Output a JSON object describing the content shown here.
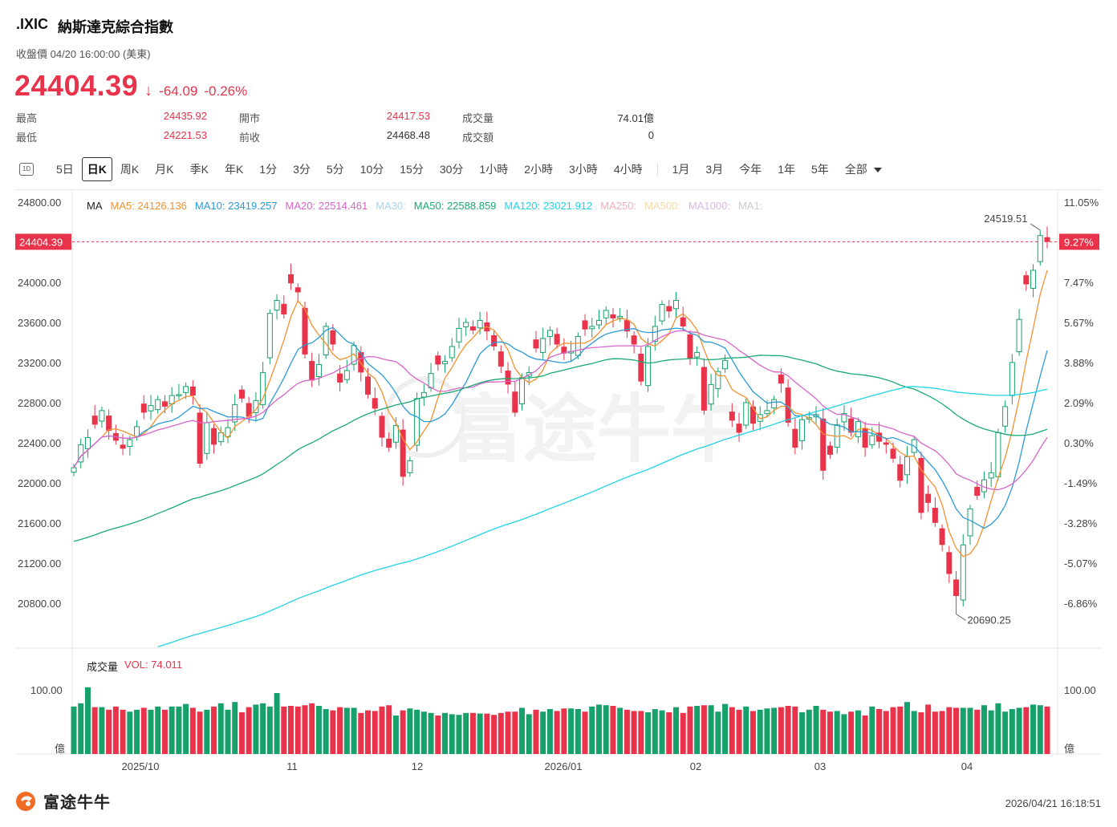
{
  "header": {
    "symbol": ".IXIC",
    "name": "納斯達克綜合指數",
    "status": "收盤價 04/20 16:00:00 (美東)",
    "price": "24404.39",
    "change": "-64.09",
    "change_pct": "-0.26%"
  },
  "stats": [
    {
      "label": "最高",
      "value": "24435.92",
      "color": "red"
    },
    {
      "label": "最低",
      "value": "24221.53",
      "color": "red"
    },
    {
      "label": "開市",
      "value": "24417.53",
      "color": "red"
    },
    {
      "label": "前收",
      "value": "24468.48",
      "color": "dark"
    },
    {
      "label": "成交量",
      "value": "74.01億",
      "color": "dark"
    },
    {
      "label": "成交額",
      "value": "0",
      "color": "dark"
    }
  ],
  "tabs": {
    "icon_label": "1D",
    "items": [
      "5日",
      "日K",
      "周K",
      "月K",
      "季K",
      "年K",
      "1分",
      "3分",
      "5分",
      "10分",
      "15分",
      "30分",
      "1小時",
      "2小時",
      "3小時",
      "4小時",
      "1月",
      "3月",
      "今年",
      "1年",
      "5年",
      "全部"
    ],
    "active": "日K"
  },
  "ma_legend": {
    "title": "MA",
    "items": [
      {
        "text": "MA5: 24126.136",
        "color": "#f29130"
      },
      {
        "text": "MA10: 23419.257",
        "color": "#2b9bd6"
      },
      {
        "text": "MA20: 22514.461",
        "color": "#d964c9"
      },
      {
        "text": "MA30:",
        "color": "#a8d5f0"
      },
      {
        "text": "MA50: 22588.859",
        "color": "#1aaa72"
      },
      {
        "text": "MA120: 23021.912",
        "color": "#22d3e6"
      },
      {
        "text": "MA250:",
        "color": "#f4b0b6"
      },
      {
        "text": "MA500:",
        "color": "#f6d9a6"
      },
      {
        "text": "MA1000:",
        "color": "#d9b8ea"
      },
      {
        "text": "MA1:",
        "color": "#cccccc"
      }
    ]
  },
  "volume_legend": {
    "title": "成交量",
    "value": "VOL: 74.011"
  },
  "footer": {
    "logo_text": "富途牛牛",
    "timestamp": "2026/04/21 16:18:51"
  },
  "colors": {
    "up": "#e8334a",
    "down": "#16a06a",
    "ma5": "#f29130",
    "ma10": "#2b9bd6",
    "ma20": "#d964c9",
    "ma50": "#1aaa72",
    "ma120": "#22d3e6"
  },
  "chart_data": {
    "type": "candlestick",
    "price_axis": {
      "left_ticks": [
        "24800.00",
        "24000.00",
        "23600.00",
        "23200.00",
        "22800.00",
        "22400.00",
        "22000.00",
        "21600.00",
        "21200.00",
        "20800.00"
      ],
      "right_ticks": [
        "11.05%",
        "7.47%",
        "5.67%",
        "3.88%",
        "2.09%",
        "0.30%",
        "-1.49%",
        "-3.28%",
        "-5.07%",
        "-6.86%"
      ],
      "current_price_label": "24404.39",
      "current_pct_label": "9.27%",
      "range": [
        20350,
        24800
      ]
    },
    "volume_axis": {
      "ticks": [
        "100.00"
      ],
      "unit": "億"
    },
    "x_labels": [
      "2025/10",
      "11",
      "12",
      "2026/01",
      "02",
      "03",
      "04"
    ],
    "annotations": {
      "high": "24519.51",
      "low": "20690.25"
    },
    "closes": [
      22150,
      22380,
      22450,
      22580,
      22720,
      22520,
      22420,
      22340,
      22430,
      22560,
      22700,
      22770,
      22830,
      22760,
      22870,
      22880,
      22960,
      22870,
      22190,
      22600,
      22380,
      22500,
      22550,
      22780,
      22840,
      22660,
      22820,
      23100,
      23690,
      23820,
      23680,
      23990,
      23900,
      23280,
      23020,
      23180,
      23560,
      23380,
      23000,
      23120,
      23370,
      23100,
      22880,
      22740,
      22450,
      22350,
      22570,
      22060,
      22220,
      22840,
      22900,
      23090,
      23180,
      23210,
      23360,
      23540,
      23600,
      23520,
      23620,
      23510,
      23360,
      23160,
      22980,
      22700,
      23050,
      23100,
      23340,
      23440,
      23520,
      23380,
      23290,
      23310,
      23460,
      23530,
      23560,
      23620,
      23720,
      23640,
      23660,
      23510,
      23380,
      23010,
      23360,
      23560,
      23780,
      23710,
      23820,
      23560,
      23240,
      23300,
      22720,
      22980,
      23110,
      23220,
      22620,
      22500,
      22800,
      22590,
      22680,
      22720,
      22830,
      22990,
      22600,
      22350,
      22630,
      22650,
      22680,
      22120,
      22280,
      22580,
      22690,
      22500,
      22610,
      22350,
      22470,
      22410,
      22380,
      22240,
      22020,
      22260,
      22430,
      21700,
      21800,
      21600,
      21380,
      21090,
      20870,
      21380,
      21740,
      21870,
      22030,
      22100,
      22500,
      22760,
      23200,
      23630,
      23980,
      24120,
      24466,
      24404
    ],
    "volumes": [
      74,
      79,
      104,
      73,
      73,
      69,
      74,
      69,
      66,
      69,
      72,
      69,
      74,
      69,
      74,
      74,
      78,
      72,
      66,
      69,
      74,
      79,
      69,
      81,
      65,
      73,
      77,
      79,
      74,
      95,
      74,
      75,
      74,
      76,
      79,
      75,
      70,
      68,
      73,
      72,
      72,
      64,
      68,
      67,
      74,
      76,
      60,
      68,
      71,
      69,
      66,
      64,
      60,
      64,
      62,
      61,
      64,
      64,
      63,
      63,
      61,
      64,
      66,
      66,
      72,
      62,
      69,
      66,
      70,
      67,
      71,
      71,
      70,
      66,
      74,
      77,
      76,
      75,
      72,
      69,
      67,
      67,
      65,
      70,
      68,
      65,
      73,
      64,
      74,
      75,
      76,
      76,
      66,
      78,
      73,
      69,
      74,
      67,
      69,
      71,
      72,
      73,
      75,
      74,
      65,
      69,
      75,
      69,
      66,
      67,
      62,
      66,
      68,
      60,
      74,
      70,
      67,
      73,
      74,
      81,
      67,
      65,
      77,
      66,
      67,
      73,
      72,
      72,
      72,
      69,
      76,
      68,
      79,
      66,
      70,
      72,
      73,
      77,
      76,
      74
    ]
  }
}
